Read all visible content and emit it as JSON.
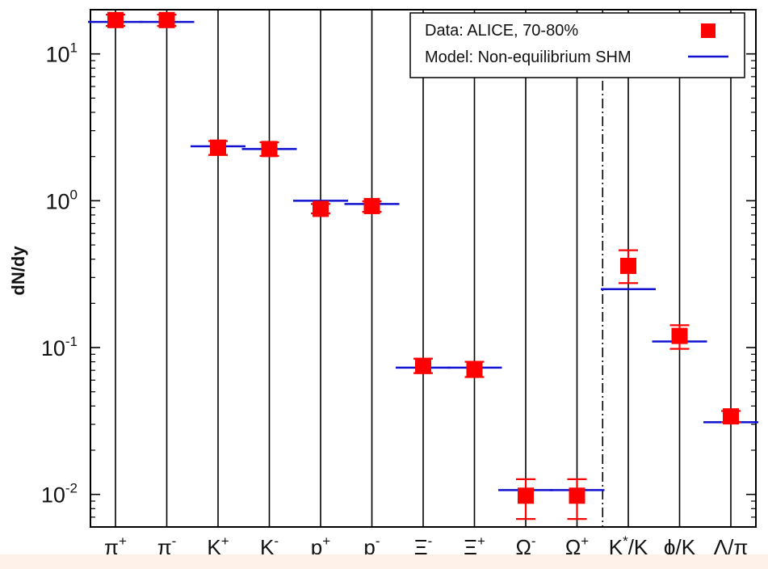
{
  "chart_data": {
    "type": "scatter",
    "title": "",
    "xlabel": "",
    "ylabel": "dN/dy",
    "yscale": "log",
    "ylim": [
      0.006,
      20
    ],
    "y_ticks": [
      {
        "value": 0.01,
        "base": "10",
        "exp": "-2"
      },
      {
        "value": 0.1,
        "base": "10",
        "exp": "-1"
      },
      {
        "value": 1,
        "base": "10",
        "exp": "0"
      },
      {
        "value": 10,
        "base": "10",
        "exp": "1"
      }
    ],
    "categories": [
      {
        "main": "π",
        "sup": "+",
        "tail": ""
      },
      {
        "main": "π",
        "sup": "-",
        "tail": ""
      },
      {
        "main": "K",
        "sup": "+",
        "tail": ""
      },
      {
        "main": "K",
        "sup": "-",
        "tail": ""
      },
      {
        "main": "p",
        "sup": "+",
        "tail": ""
      },
      {
        "main": "p",
        "sup": "-",
        "tail": ""
      },
      {
        "main": "Ξ",
        "sup": "-",
        "tail": ""
      },
      {
        "main": "Ξ",
        "sup": "+",
        "tail": ""
      },
      {
        "main": "Ω",
        "sup": "-",
        "tail": ""
      },
      {
        "main": "Ω",
        "sup": "+",
        "tail": ""
      },
      {
        "main": "K",
        "sup": "*",
        "tail": "/K"
      },
      {
        "main": "ϕ/K",
        "sup": "",
        "tail": ""
      },
      {
        "main": "Λ/π",
        "sup": "",
        "tail": ""
      }
    ],
    "separator_after_index": 9,
    "legend_position": "top-right",
    "series": [
      {
        "name": "Data: ALICE, 70-80%",
        "kind": "points",
        "color": "#ff0000",
        "values": [
          17,
          17,
          2.3,
          2.25,
          0.88,
          0.92,
          0.075,
          0.071,
          0.0098,
          0.0098,
          0.36,
          0.12,
          0.034
        ],
        "err_low": [
          15.5,
          15.5,
          2.05,
          2.02,
          0.82,
          0.84,
          0.067,
          0.063,
          0.0068,
          0.0068,
          0.275,
          0.098,
          0.031
        ],
        "err_high": [
          18.5,
          18.5,
          2.55,
          2.5,
          0.95,
          0.99,
          0.084,
          0.08,
          0.0127,
          0.0127,
          0.46,
          0.142,
          0.037
        ]
      },
      {
        "name": "Model: Non-equilibrium SHM",
        "kind": "levels",
        "color": "#1010d0",
        "values": [
          16.5,
          16.5,
          2.35,
          2.25,
          1.0,
          0.95,
          0.073,
          0.073,
          0.0107,
          0.0107,
          0.25,
          0.11,
          0.031
        ]
      }
    ]
  }
}
